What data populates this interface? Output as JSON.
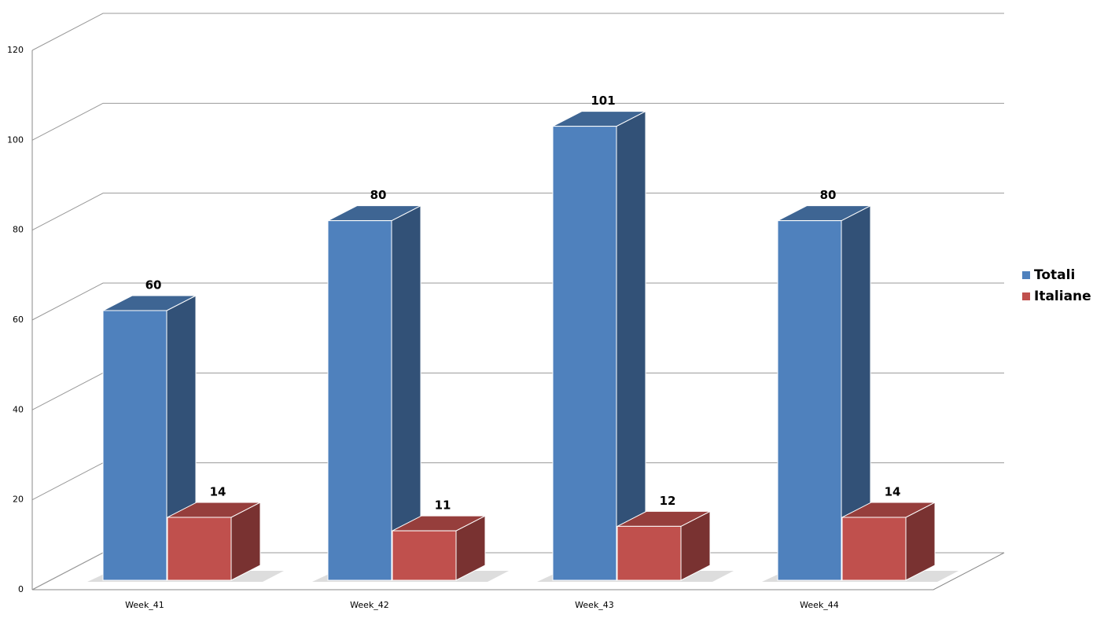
{
  "chart_data": {
    "type": "bar3d",
    "categories": [
      "Week_41",
      "Week_42",
      "Week_43",
      "Week_44"
    ],
    "series": [
      {
        "name": "Totali",
        "color": "#4f81bd",
        "values": [
          60,
          80,
          101,
          80
        ]
      },
      {
        "name": "Italiane",
        "color": "#c0504d",
        "values": [
          14,
          11,
          12,
          14
        ]
      }
    ],
    "ylim": [
      0,
      120
    ],
    "yticks": [
      0,
      20,
      40,
      60,
      80,
      100,
      120
    ],
    "grid": true,
    "legend": "right"
  }
}
